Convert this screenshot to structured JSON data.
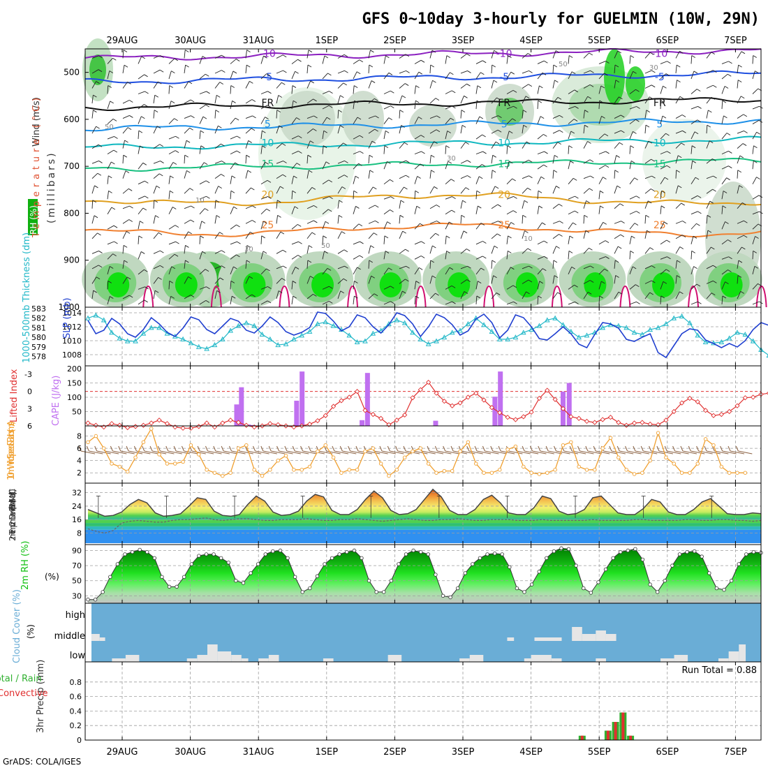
{
  "title": "GFS 0~10day 3-hourly for GUELMIN (10W, 29N)",
  "credit": "GrADS: COLA/IGES",
  "dates": [
    "29AUG",
    "30AUG",
    "31AUG",
    "1SEP",
    "2SEP",
    "3SEP",
    "4SEP",
    "5SEP",
    "6SEP",
    "7SEP"
  ],
  "colors": {
    "grid": "#9e9e9e",
    "slp": "#1f3fd0",
    "thickness": "#22b8c8",
    "lifted": "#e03030",
    "cape": "#c070f0",
    "wind": "#f0a030",
    "barb": "#8a6040",
    "rh": "#10c010",
    "cloud": "#6aadd6",
    "cloud_fill": "#e6e6e6",
    "precip_total": "#30b030",
    "precip_conv": "#e03030"
  },
  "panels": {
    "upper": {
      "labels": {
        "wind": "Wind (m/s)",
        "temp": "Temperature (°C)",
        "rh": "RH (%)",
        "mb": "(millibars)"
      },
      "yticks": [
        500,
        600,
        700,
        800,
        900,
        1000
      ],
      "isotherms": [
        {
          "label": "-10",
          "level": 470,
          "color": "#8b20c0"
        },
        {
          "label": "-5",
          "level": 520,
          "color": "#1f4fe0"
        },
        {
          "label": "FR",
          "level": 575,
          "color": "#111111"
        },
        {
          "label": "5",
          "level": 620,
          "color": "#1e90e8"
        },
        {
          "label": "10",
          "level": 660,
          "color": "#10b8c0"
        },
        {
          "label": "15",
          "level": 705,
          "color": "#18c080"
        },
        {
          "label": "20",
          "level": 770,
          "color": "#e0a020"
        },
        {
          "label": "25",
          "level": 835,
          "color": "#f08030"
        }
      ],
      "contour_labels": [
        "50",
        "30",
        "10"
      ]
    },
    "thickness": {
      "label_thick": "1000-500mb Thickness (dm)",
      "label_slp": "SLP (mb)",
      "ticks_thick": [
        578,
        579,
        580,
        581,
        582,
        583
      ],
      "ticks_slp": [
        1008,
        1010,
        1012,
        1014
      ],
      "slp": [
        1012.9,
        1011.0,
        1011.5,
        1013.2,
        1012.4,
        1011.0,
        1010.5,
        1011.6,
        1013.3,
        1012.4,
        1011.2,
        1010.6,
        1011.8,
        1013.4,
        1013.0,
        1011.6,
        1011.0,
        1012.1,
        1013.2,
        1012.8,
        1011.5,
        1011.1,
        1012.1,
        1013.4,
        1012.6,
        1011.3,
        1010.8,
        1011.2,
        1011.9,
        1014.1,
        1013.9,
        1012.8,
        1011.4,
        1012.0,
        1013.7,
        1013.3,
        1012.0,
        1011.1,
        1012.3,
        1014.0,
        1013.6,
        1012.4,
        1010.6,
        1012.0,
        1013.8,
        1013.3,
        1012.3,
        1010.8,
        1011.4,
        1013.1,
        1013.8,
        1012.6,
        1010.4,
        1011.5,
        1013.7,
        1013.3,
        1012.0,
        1010.3,
        1010.1,
        1011.0,
        1012.0,
        1011.0,
        1009.5,
        1009.0,
        1010.9,
        1012.6,
        1012.4,
        1011.8,
        1010.2,
        1009.9,
        1010.5,
        1011.0,
        1008.3,
        1007.6,
        1009.3,
        1011.0,
        1011.7,
        1011.5,
        1010.1,
        1009.6,
        1009.0,
        1009.6,
        1009.1,
        1010.0,
        1011.6,
        1012.6,
        1012.2,
        1012.6
      ],
      "thickness": [
        582.0,
        582.3,
        581.8,
        580.5,
        579.9,
        579.6,
        579.6,
        580.4,
        581.0,
        581.0,
        580.4,
        580.1,
        579.8,
        579.4,
        579.0,
        578.8,
        579.2,
        579.8,
        580.7,
        581.2,
        581.5,
        581.2,
        580.3,
        579.8,
        579.2,
        579.3,
        579.8,
        580.2,
        580.6,
        581.4,
        581.6,
        581.2,
        580.8,
        580.2,
        579.5,
        579.6,
        580.4,
        580.7,
        581.4,
        581.8,
        581.5,
        580.5,
        579.8,
        579.3,
        579.6,
        580.0,
        580.5,
        580.7,
        581.4,
        582.0,
        581.3,
        580.6,
        579.8,
        579.8,
        580.0,
        580.5,
        580.8,
        581.2,
        581.8,
        582.0,
        581.3,
        580.6,
        580.0,
        580.2,
        580.5,
        581.0,
        581.3,
        581.2,
        581.0,
        580.5,
        580.3,
        580.8,
        581.0,
        581.4,
        582.0,
        582.2,
        581.5,
        580.2,
        579.5,
        579.4,
        579.5,
        579.9,
        580.5,
        580.3,
        579.6,
        578.7,
        578.1,
        577.6
      ]
    },
    "stability": {
      "label_li": "Lifted Index",
      "label_cape": "CAPE (J/kg)",
      "li_ticks": [
        "-3",
        "0",
        "3",
        "6"
      ],
      "cape_ticks": [
        50,
        100,
        150,
        200
      ],
      "lifted_index": [
        5.5,
        5.9,
        6.2,
        5.6,
        5.9,
        6.3,
        6.1,
        5.9,
        5.5,
        5.0,
        5.6,
        6.2,
        6.4,
        6.4,
        6.1,
        5.5,
        6.2,
        5.5,
        5.0,
        5.4,
        5.9,
        6.2,
        6.0,
        5.6,
        5.8,
        6.0,
        6.2,
        6.0,
        5.7,
        5.1,
        4.2,
        2.6,
        1.6,
        1.0,
        0.0,
        3.3,
        4.0,
        4.7,
        5.8,
        5.0,
        4.1,
        1.1,
        -0.3,
        -1.6,
        0.3,
        1.7,
        2.5,
        2.0,
        1.0,
        0.3,
        1.5,
        2.8,
        3.7,
        4.5,
        4.9,
        4.4,
        3.6,
        1.2,
        -0.2,
        1.4,
        3.0,
        4.4,
        4.7,
        5.2,
        5.4,
        4.9,
        4.5,
        5.4,
        5.9,
        5.5,
        5.4,
        5.7,
        5.8,
        5.0,
        3.5,
        2.0,
        1.2,
        1.8,
        3.3,
        4.2,
        4.0,
        3.5,
        2.5,
        1.1,
        1.0,
        0.5,
        0.3,
        2.5
      ],
      "cape": [
        [
          1.68,
          75
        ],
        [
          1.75,
          135
        ],
        [
          1.85,
          5
        ],
        [
          1.92,
          3
        ],
        [
          2.56,
          88
        ],
        [
          2.64,
          190
        ],
        [
          3.52,
          20
        ],
        [
          3.6,
          185
        ],
        [
          4.6,
          18
        ],
        [
          5.47,
          102
        ],
        [
          5.55,
          190
        ],
        [
          6.47,
          120
        ],
        [
          6.56,
          150
        ]
      ]
    },
    "wind10m": {
      "label": "10m Wind Speed & Barbs (m/s)",
      "ticks": [
        2,
        4,
        6,
        8
      ],
      "speed": [
        7.0,
        8.0,
        6.0,
        3.5,
        3.0,
        2.2,
        4.5,
        7.0,
        9.2,
        5.0,
        3.5,
        3.5,
        3.8,
        6.5,
        5.0,
        2.5,
        2.0,
        1.5,
        2.0,
        6.0,
        6.5,
        2.5,
        1.5,
        2.5,
        4.0,
        4.8,
        2.5,
        2.5,
        3.0,
        5.5,
        6.5,
        4.5,
        2.0,
        2.5,
        2.5,
        5.5,
        6.0,
        3.5,
        1.5,
        2.5,
        4.5,
        5.5,
        6.0,
        3.5,
        2.0,
        2.3,
        2.3,
        5.5,
        7.0,
        3.5,
        2.0,
        2.0,
        2.5,
        5.8,
        6.3,
        3.0,
        2.0,
        1.8,
        2.0,
        2.5,
        6.5,
        7.0,
        3.0,
        2.5,
        2.5,
        6.0,
        7.7,
        4.5,
        2.5,
        1.8,
        2.0,
        4.0,
        8.5,
        4.5,
        3.5,
        2.0,
        2.0,
        3.5,
        7.5,
        6.5,
        3.0,
        2.0,
        2.0,
        2.0
      ]
    },
    "temp": {
      "label": "2m Temp 2m DewPt (6hr Min/Max) (°C)",
      "ticks": [
        8,
        16,
        24,
        32
      ],
      "temp": [
        22.0,
        20.0,
        18.0,
        18.5,
        20.5,
        25.0,
        28.0,
        26.0,
        20.0,
        18.0,
        18.5,
        19.5,
        24.0,
        29.0,
        28.0,
        21.0,
        18.5,
        18.0,
        19.0,
        25.0,
        30.0,
        27.0,
        20.5,
        18.5,
        19.0,
        21.0,
        27.0,
        31.0,
        29.5,
        21.5,
        19.0,
        19.0,
        22.0,
        28.0,
        33.0,
        29.0,
        21.5,
        19.0,
        19.5,
        22.0,
        28.0,
        34.0,
        29.5,
        21.5,
        19.0,
        19.0,
        22.0,
        28.0,
        30.5,
        26.0,
        20.0,
        19.0,
        19.0,
        23.0,
        30.0,
        28.5,
        21.0,
        19.0,
        19.5,
        22.0,
        29.0,
        30.0,
        25.0,
        20.0,
        19.0,
        19.0,
        22.5,
        28.0,
        26.5,
        20.5,
        19.0,
        19.0,
        22.0,
        26.5,
        28.5,
        24.0,
        19.5,
        19.0,
        19.0,
        20.0,
        19.5
      ],
      "dewpt": [
        10.5,
        9.0,
        8.0,
        9.5,
        14.0,
        15.0,
        15.5,
        15.0,
        14.5,
        14.5,
        15.5,
        16.0,
        16.0,
        16.5,
        17.0,
        16.0,
        15.5,
        16.0,
        16.5,
        16.5,
        16.0,
        15.5,
        15.5,
        16.0,
        16.0,
        16.0,
        16.5,
        16.0,
        15.5,
        15.5,
        16.0,
        16.0,
        16.5,
        16.0,
        15.5,
        15.0,
        15.5,
        16.0,
        16.5,
        16.0,
        15.5,
        15.5,
        16.0,
        16.0,
        16.5,
        16.0,
        15.5,
        15.5,
        16.0,
        16.0,
        16.0,
        15.5,
        15.5,
        15.5,
        16.0,
        15.5,
        15.5,
        15.5,
        15.5,
        15.5,
        16.0,
        15.5,
        15.5,
        15.5,
        15.5,
        16.0,
        16.0,
        15.5,
        15.5,
        15.5,
        15.5,
        16.0,
        16.0,
        15.5,
        15.5,
        16.0,
        16.0,
        15.5,
        15.5,
        15.0,
        15.5
      ]
    },
    "rh2m": {
      "label": "2m RH (%)",
      "ticks": [
        30,
        50,
        70,
        90
      ],
      "rh": [
        25,
        25,
        35,
        55,
        72,
        85,
        88,
        91,
        88,
        80,
        55,
        42,
        42,
        55,
        72,
        83,
        85,
        85,
        80,
        74,
        50,
        47,
        60,
        72,
        85,
        89,
        90,
        80,
        55,
        35,
        40,
        56,
        72,
        80,
        85,
        88,
        90,
        80,
        50,
        35,
        35,
        50,
        72,
        85,
        90,
        88,
        85,
        58,
        30,
        28,
        40,
        60,
        72,
        80,
        85,
        86,
        85,
        68,
        40,
        35,
        45,
        62,
        80,
        89,
        93,
        92,
        70,
        40,
        34,
        48,
        65,
        80,
        88,
        90,
        92,
        78,
        45,
        35,
        50,
        70,
        85,
        88,
        89,
        82,
        60,
        40,
        38,
        50,
        72,
        85,
        88,
        87
      ]
    },
    "cloud": {
      "label": "Cloud Cover (%)",
      "levels": [
        "high",
        "middle",
        "low"
      ],
      "middle": [
        [
          0,
          0.12,
          2
        ],
        [
          0.12,
          0.2,
          1
        ],
        [
          6.1,
          6.2,
          1
        ],
        [
          6.5,
          6.9,
          1
        ],
        [
          7.05,
          7.2,
          4
        ],
        [
          7.2,
          7.4,
          2
        ],
        [
          7.4,
          7.55,
          3
        ],
        [
          7.55,
          7.7,
          2
        ]
      ],
      "low": [
        [
          0.3,
          0.5,
          1
        ],
        [
          0.5,
          0.7,
          2
        ],
        [
          1.4,
          1.55,
          1
        ],
        [
          1.55,
          1.7,
          2
        ],
        [
          1.7,
          1.85,
          5
        ],
        [
          1.85,
          2.05,
          3
        ],
        [
          2.05,
          2.2,
          2
        ],
        [
          2.2,
          2.3,
          1
        ],
        [
          2.45,
          2.6,
          1
        ],
        [
          2.6,
          2.75,
          2
        ],
        [
          3.4,
          3.55,
          1
        ],
        [
          4.35,
          4.55,
          2
        ],
        [
          5.4,
          5.55,
          1
        ],
        [
          5.55,
          5.75,
          2
        ],
        [
          6.35,
          6.45,
          1
        ],
        [
          6.45,
          6.75,
          2
        ],
        [
          6.75,
          6.9,
          1
        ],
        [
          7.4,
          7.55,
          1
        ],
        [
          8.35,
          8.55,
          1
        ],
        [
          8.55,
          8.75,
          2
        ],
        [
          9.2,
          9.35,
          1
        ],
        [
          9.35,
          9.5,
          3
        ],
        [
          9.5,
          9.6,
          5
        ]
      ]
    },
    "precip": {
      "label": "3hr Precip (mm)",
      "legend_total": "Total / Rain",
      "legend_conv": "Convective",
      "run_total": "Run Total = 0.88",
      "ticks": [
        "0",
        "0.2",
        "0.4",
        "0.6",
        "0.8"
      ],
      "bars": [
        [
          6.75,
          0.06
        ],
        [
          7.13,
          0.13
        ],
        [
          7.24,
          0.25
        ],
        [
          7.35,
          0.38
        ],
        [
          7.46,
          0.06
        ]
      ]
    }
  }
}
